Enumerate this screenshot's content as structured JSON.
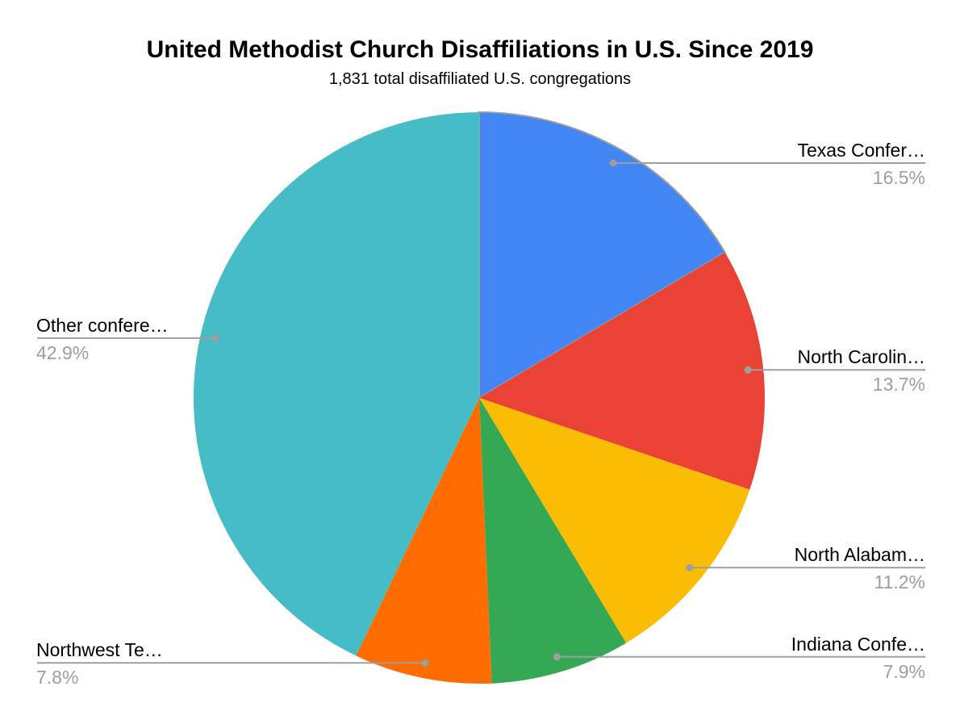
{
  "chart_data": {
    "type": "pie",
    "title": "United Methodist Church Disaffiliations in U.S. Since 2019",
    "subtitle": "1,831 total disaffiliated U.S. congregations",
    "total_congregations": "1,831",
    "legend_position": "none",
    "label_style": "callout-with-percent",
    "start_angle_deg": 0,
    "direction": "clockwise",
    "background_color": "#ffffff",
    "callout_color": "#9e9e9e",
    "percent_text_color": "#9e9e9e",
    "label_text_color": "#000000",
    "slices": [
      {
        "label": "Texas Confer…",
        "value": 16.5,
        "percent_label": "16.5%",
        "color": "#4285f4",
        "side": "right",
        "highlighted": true
      },
      {
        "label": "North Carolin…",
        "value": 13.7,
        "percent_label": "13.7%",
        "color": "#ea4335",
        "side": "right",
        "highlighted": false
      },
      {
        "label": "North Alabam…",
        "value": 11.2,
        "percent_label": "11.2%",
        "color": "#fbbc04",
        "side": "right",
        "highlighted": false
      },
      {
        "label": "Indiana Confe…",
        "value": 7.9,
        "percent_label": "7.9%",
        "color": "#34a853",
        "side": "right",
        "highlighted": false
      },
      {
        "label": "Northwest Te…",
        "value": 7.8,
        "percent_label": "7.8%",
        "color": "#ff6d01",
        "side": "left",
        "highlighted": false
      },
      {
        "label": "Other confere…",
        "value": 42.9,
        "percent_label": "42.9%",
        "color": "#46bdc6",
        "side": "left",
        "highlighted": false
      }
    ]
  }
}
